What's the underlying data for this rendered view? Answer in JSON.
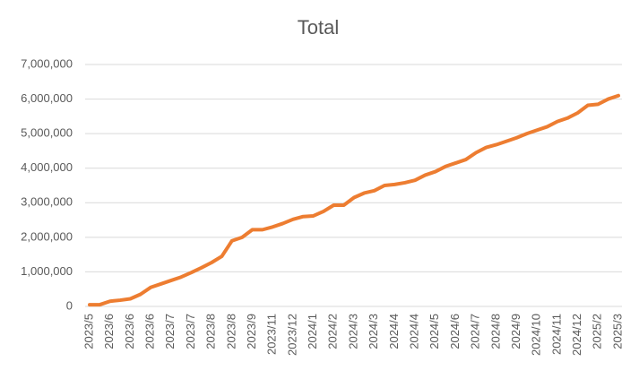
{
  "chart_data": {
    "type": "line",
    "title": "Total",
    "categories": [
      "2023/5",
      null,
      "2023/6",
      null,
      "2023/6",
      null,
      "2023/6",
      null,
      "2023/7",
      null,
      "2023/7",
      null,
      "2023/8",
      null,
      "2023/8",
      null,
      "2023/9",
      null,
      "2023/11",
      null,
      "2023/12",
      null,
      "2024/1",
      null,
      "2024/2",
      null,
      "2024/3",
      null,
      "2024/3",
      null,
      "2024/4",
      null,
      "2024/4",
      null,
      "2024/5",
      null,
      "2024/6",
      null,
      "2024/7",
      null,
      "2024/8",
      null,
      "2024/9",
      null,
      "2024/10",
      null,
      "2024/11",
      null,
      "2024/12",
      null,
      "2025/2",
      null,
      "2025/3"
    ],
    "series": [
      {
        "name": "Total",
        "color": "#ed7d31",
        "values": [
          50000,
          50000,
          150000,
          180000,
          220000,
          350000,
          550000,
          650000,
          750000,
          850000,
          980000,
          1120000,
          1270000,
          1450000,
          1900000,
          2000000,
          2220000,
          2220000,
          2300000,
          2400000,
          2520000,
          2600000,
          2620000,
          2750000,
          2930000,
          2930000,
          3150000,
          3280000,
          3350000,
          3500000,
          3530000,
          3580000,
          3650000,
          3800000,
          3900000,
          4050000,
          4150000,
          4250000,
          4450000,
          4600000,
          4680000,
          4780000,
          4880000,
          5000000,
          5100000,
          5200000,
          5350000,
          5450000,
          5600000,
          5820000,
          5850000,
          6000000,
          6100000
        ]
      }
    ],
    "ylim": [
      0,
      7000000
    ],
    "yticks": [
      0,
      {
        "value": 1000000,
        "label": "1,000,000"
      },
      {
        "value": 2000000,
        "label": "2,000,000"
      },
      {
        "value": 3000000,
        "label": "3,000,000"
      },
      {
        "value": 4000000,
        "label": "4,000,000"
      },
      {
        "value": 5000000,
        "label": "5,000,000"
      },
      {
        "value": 6000000,
        "label": "6,000,000"
      },
      {
        "value": 7000000,
        "label": "7,000,000"
      }
    ],
    "grid": true
  }
}
